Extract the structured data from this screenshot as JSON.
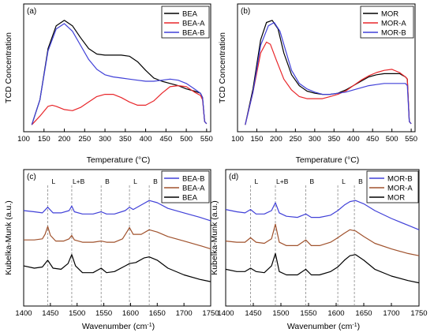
{
  "chart_data": [
    {
      "type": "line",
      "panel_label": "(a)",
      "xlabel": "Temperature (°C)",
      "ylabel": "TCD Concentration",
      "xlim": [
        100,
        560
      ],
      "ylim": [
        0,
        1
      ],
      "xticks": [
        100,
        150,
        200,
        250,
        300,
        350,
        400,
        450,
        500,
        550
      ],
      "legend_position": "top-right",
      "series": [
        {
          "name": "BEA",
          "color": "#000000",
          "x": [
            120,
            140,
            160,
            180,
            200,
            220,
            240,
            260,
            280,
            300,
            320,
            340,
            360,
            380,
            400,
            420,
            440,
            460,
            480,
            500,
            520,
            535,
            540,
            545,
            550
          ],
          "y": [
            0.02,
            0.25,
            0.72,
            0.93,
            0.98,
            0.93,
            0.82,
            0.72,
            0.67,
            0.66,
            0.66,
            0.66,
            0.65,
            0.6,
            0.52,
            0.45,
            0.42,
            0.4,
            0.38,
            0.35,
            0.33,
            0.31,
            0.27,
            0.05,
            0.03
          ]
        },
        {
          "name": "BEA-A",
          "color": "#e8262a",
          "x": [
            120,
            140,
            160,
            170,
            180,
            200,
            220,
            240,
            260,
            280,
            300,
            320,
            340,
            360,
            380,
            400,
            420,
            440,
            460,
            480,
            500,
            520,
            535,
            540,
            545,
            550
          ],
          "y": [
            0.02,
            0.1,
            0.19,
            0.2,
            0.19,
            0.16,
            0.15,
            0.18,
            0.23,
            0.28,
            0.3,
            0.3,
            0.27,
            0.23,
            0.2,
            0.2,
            0.24,
            0.31,
            0.37,
            0.38,
            0.37,
            0.32,
            0.29,
            0.25,
            0.05,
            0.03
          ]
        },
        {
          "name": "BEA-B",
          "color": "#4040d8",
          "x": [
            120,
            140,
            160,
            180,
            200,
            220,
            240,
            260,
            280,
            300,
            320,
            340,
            360,
            380,
            400,
            420,
            440,
            460,
            480,
            500,
            520,
            535,
            540,
            545,
            550
          ],
          "y": [
            0.02,
            0.25,
            0.7,
            0.9,
            0.95,
            0.88,
            0.75,
            0.62,
            0.53,
            0.48,
            0.46,
            0.45,
            0.44,
            0.43,
            0.42,
            0.42,
            0.43,
            0.44,
            0.43,
            0.4,
            0.35,
            0.31,
            0.27,
            0.05,
            0.03
          ]
        }
      ]
    },
    {
      "type": "line",
      "panel_label": "(b)",
      "xlabel": "Temperature (°C)",
      "ylabel": "TCD Concentration",
      "xlim": [
        100,
        560
      ],
      "ylim": [
        0,
        1
      ],
      "xticks": [
        100,
        150,
        200,
        250,
        300,
        350,
        400,
        450,
        500,
        550
      ],
      "legend_position": "top-right",
      "series": [
        {
          "name": "MOR",
          "color": "#000000",
          "x": [
            120,
            140,
            160,
            175,
            190,
            205,
            220,
            240,
            260,
            280,
            300,
            320,
            340,
            360,
            380,
            400,
            420,
            440,
            460,
            480,
            500,
            520,
            535,
            540,
            545,
            550
          ],
          "y": [
            0.02,
            0.35,
            0.8,
            0.96,
            0.98,
            0.9,
            0.68,
            0.48,
            0.38,
            0.33,
            0.31,
            0.3,
            0.3,
            0.31,
            0.34,
            0.38,
            0.42,
            0.46,
            0.48,
            0.49,
            0.49,
            0.49,
            0.46,
            0.44,
            0.05,
            0.03
          ]
        },
        {
          "name": "MOR-A",
          "color": "#e8262a",
          "x": [
            120,
            140,
            160,
            175,
            185,
            200,
            220,
            240,
            260,
            280,
            300,
            320,
            340,
            360,
            380,
            400,
            420,
            440,
            460,
            480,
            500,
            520,
            535,
            540,
            545,
            550
          ],
          "y": [
            0.02,
            0.32,
            0.68,
            0.78,
            0.76,
            0.62,
            0.44,
            0.34,
            0.28,
            0.26,
            0.26,
            0.26,
            0.28,
            0.3,
            0.33,
            0.38,
            0.43,
            0.47,
            0.5,
            0.52,
            0.53,
            0.5,
            0.46,
            0.44,
            0.05,
            0.03
          ]
        },
        {
          "name": "MOR-B",
          "color": "#4040d8",
          "x": [
            120,
            140,
            160,
            180,
            195,
            210,
            225,
            240,
            260,
            280,
            300,
            320,
            340,
            360,
            380,
            400,
            420,
            440,
            460,
            480,
            500,
            520,
            535,
            540,
            545,
            550
          ],
          "y": [
            0.02,
            0.32,
            0.75,
            0.93,
            0.96,
            0.88,
            0.7,
            0.52,
            0.4,
            0.35,
            0.32,
            0.3,
            0.3,
            0.31,
            0.32,
            0.34,
            0.36,
            0.38,
            0.39,
            0.4,
            0.4,
            0.4,
            0.4,
            0.38,
            0.05,
            0.03
          ]
        }
      ]
    },
    {
      "type": "line",
      "panel_label": "(c)",
      "xlabel": "Wavenumber (cm",
      "xlabel_sup": "-1",
      "xlabel_end": ")",
      "ylabel": "Kubelka-Munk (a.u.)",
      "xlim": [
        1400,
        1750
      ],
      "ylim": [
        0,
        1
      ],
      "xticks": [
        1400,
        1450,
        1500,
        1550,
        1600,
        1650,
        1700,
        1750
      ],
      "legend_position": "top-right",
      "bands": [
        {
          "x": 1445,
          "label": "L"
        },
        {
          "x": 1490,
          "label": "L+B"
        },
        {
          "x": 1545,
          "label": "B"
        },
        {
          "x": 1598,
          "label": "L"
        },
        {
          "x": 1635,
          "label": "B"
        }
      ],
      "series": [
        {
          "name": "BEA-B",
          "color": "#4040d8",
          "x": [
            1400,
            1420,
            1435,
            1445,
            1455,
            1470,
            1485,
            1490,
            1495,
            1510,
            1530,
            1545,
            1555,
            1570,
            1590,
            1598,
            1605,
            1620,
            1635,
            1650,
            1670,
            1700,
            1730,
            1750
          ],
          "y": [
            0.79,
            0.78,
            0.77,
            0.82,
            0.77,
            0.77,
            0.79,
            0.83,
            0.78,
            0.76,
            0.76,
            0.78,
            0.76,
            0.76,
            0.79,
            0.82,
            0.8,
            0.84,
            0.88,
            0.86,
            0.81,
            0.77,
            0.73,
            0.7
          ]
        },
        {
          "name": "BEA-A",
          "color": "#a0522d",
          "x": [
            1400,
            1420,
            1435,
            1440,
            1445,
            1450,
            1460,
            1475,
            1485,
            1490,
            1495,
            1510,
            1530,
            1545,
            1555,
            1570,
            1585,
            1593,
            1598,
            1605,
            1620,
            1635,
            1650,
            1670,
            1700,
            1730,
            1750
          ],
          "y": [
            0.53,
            0.53,
            0.54,
            0.58,
            0.65,
            0.57,
            0.52,
            0.52,
            0.54,
            0.57,
            0.53,
            0.51,
            0.51,
            0.52,
            0.51,
            0.51,
            0.54,
            0.6,
            0.64,
            0.58,
            0.58,
            0.62,
            0.6,
            0.56,
            0.52,
            0.48,
            0.45
          ]
        },
        {
          "name": "BEA",
          "color": "#000000",
          "x": [
            1400,
            1420,
            1435,
            1445,
            1455,
            1470,
            1483,
            1490,
            1497,
            1510,
            1530,
            1545,
            1555,
            1570,
            1590,
            1598,
            1610,
            1625,
            1635,
            1650,
            1670,
            1700,
            1730,
            1750
          ],
          "y": [
            0.3,
            0.28,
            0.29,
            0.35,
            0.28,
            0.27,
            0.32,
            0.4,
            0.3,
            0.24,
            0.24,
            0.28,
            0.24,
            0.25,
            0.3,
            0.32,
            0.33,
            0.37,
            0.38,
            0.35,
            0.28,
            0.22,
            0.18,
            0.16
          ]
        }
      ]
    },
    {
      "type": "line",
      "panel_label": "(d)",
      "xlabel": "Wavenumber (cm",
      "xlabel_sup": "-1",
      "xlabel_end": ")",
      "ylabel": "Kubelka-Munk (a.u.)",
      "xlim": [
        1400,
        1750
      ],
      "ylim": [
        0,
        1
      ],
      "xticks": [
        1400,
        1450,
        1500,
        1550,
        1600,
        1650,
        1700,
        1750
      ],
      "legend_position": "top-right",
      "bands": [
        {
          "x": 1445,
          "label": "L"
        },
        {
          "x": 1490,
          "label": "L+B"
        },
        {
          "x": 1545,
          "label": "B"
        },
        {
          "x": 1603,
          "label": "L"
        },
        {
          "x": 1633,
          "label": "B"
        }
      ],
      "series": [
        {
          "name": "MOR-B",
          "color": "#4040d8",
          "x": [
            1400,
            1420,
            1435,
            1445,
            1455,
            1470,
            1483,
            1490,
            1497,
            1510,
            1530,
            1545,
            1555,
            1570,
            1590,
            1603,
            1615,
            1625,
            1635,
            1650,
            1670,
            1700,
            1730,
            1750
          ],
          "y": [
            0.8,
            0.78,
            0.77,
            0.8,
            0.76,
            0.76,
            0.79,
            0.86,
            0.77,
            0.74,
            0.73,
            0.76,
            0.73,
            0.73,
            0.75,
            0.79,
            0.84,
            0.87,
            0.88,
            0.85,
            0.79,
            0.72,
            0.66,
            0.62
          ]
        },
        {
          "name": "MOR-A",
          "color": "#a0522d",
          "x": [
            1400,
            1420,
            1435,
            1445,
            1455,
            1470,
            1483,
            1490,
            1497,
            1510,
            1530,
            1545,
            1555,
            1570,
            1590,
            1603,
            1615,
            1625,
            1635,
            1650,
            1670,
            1700,
            1730,
            1750
          ],
          "y": [
            0.52,
            0.51,
            0.51,
            0.55,
            0.51,
            0.5,
            0.54,
            0.67,
            0.51,
            0.48,
            0.48,
            0.53,
            0.48,
            0.48,
            0.51,
            0.55,
            0.59,
            0.62,
            0.61,
            0.56,
            0.5,
            0.45,
            0.41,
            0.39
          ]
        },
        {
          "name": "MOR",
          "color": "#000000",
          "x": [
            1400,
            1420,
            1435,
            1445,
            1455,
            1470,
            1483,
            1490,
            1497,
            1510,
            1530,
            1545,
            1555,
            1570,
            1590,
            1603,
            1615,
            1625,
            1635,
            1650,
            1670,
            1700,
            1730,
            1750
          ],
          "y": [
            0.27,
            0.25,
            0.25,
            0.28,
            0.25,
            0.24,
            0.3,
            0.41,
            0.25,
            0.22,
            0.22,
            0.27,
            0.22,
            0.22,
            0.25,
            0.29,
            0.35,
            0.39,
            0.4,
            0.35,
            0.27,
            0.21,
            0.17,
            0.15
          ]
        }
      ]
    }
  ]
}
